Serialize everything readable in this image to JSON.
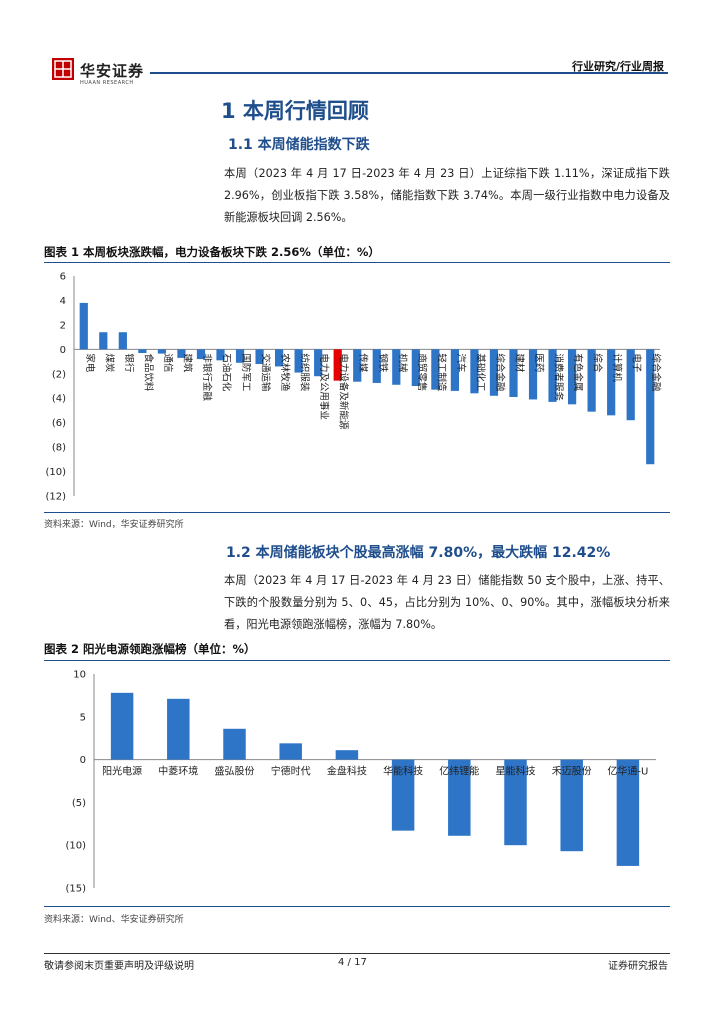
{
  "header": {
    "logo_text": "华安证券",
    "logo_subtext": "HUAAN RESEARCH",
    "report_type": "行业研究/行业周报",
    "colors": {
      "accent": "#1f4e8c",
      "logo": "#c00000"
    }
  },
  "section": {
    "title": "1 本周行情回顾",
    "sub1": {
      "title": "1.1 本周储能指数下跌",
      "text": "本周（2023 年 4 月 17 日-2023 年 4 月 23 日）上证综指下跌 1.11%，深证成指下跌 2.96%，创业板指下跌 3.58%，储能指数下跌 3.74%。本周一级行业指数中电力设备及新能源板块回调 2.56%。"
    },
    "sub2": {
      "title": "1.2 本周储能板块个股最高涨幅 7.80%，最大跌幅 12.42%",
      "text": "本周（2023 年 4 月 17 日-2023 年 4 月 23 日）储能指数 50 支个股中，上涨、持平、下跌的个股数量分别为 5、0、45，占比分别为 10%、0、90%。其中，涨幅板块分析来看，阳光电源领跑涨幅榜，涨幅为 7.80%。"
    }
  },
  "figure1": {
    "title": "图表 1 本周板块涨跌幅，电力设备板块下跌 2.56%（单位：%）",
    "source": "资料来源：Wind，华安证券研究所"
  },
  "figure2": {
    "title": "图表 2 阳光电源领跑涨幅榜（单位：%）",
    "source": "资料来源：Wind、华安证券研究所"
  },
  "chart_data": [
    {
      "type": "bar",
      "categories": [
        "家电",
        "煤炭",
        "银行",
        "食品饮料",
        "通信",
        "建筑",
        "非银行金融",
        "石油石化",
        "国防军工",
        "交通运输",
        "农林牧渔",
        "纺织服装",
        "电力及公用事业",
        "电力设备及新能源",
        "传媒",
        "钢铁",
        "机械",
        "商贸零售",
        "轻工制造",
        "汽车",
        "基础化工",
        "综合金融",
        "建材",
        "医药",
        "消费者服务",
        "有色金属",
        "综合",
        "计算机",
        "电子",
        "综合金融2"
      ],
      "category_labels": [
        "家电",
        "煤炭",
        "银行",
        "食品饮料",
        "通信",
        "建筑",
        "非银行金融",
        "石油石化",
        "国防军工",
        "交通运输",
        "农林牧渔",
        "纺织服装",
        "电力及公用事业",
        "电力设备及新能源",
        "传媒",
        "钢铁",
        "机械",
        "商贸零售",
        "轻工制造",
        "汽车",
        "基础化工",
        "综合金融",
        "建材",
        "医药",
        "消费者服务",
        "有色金属",
        "综合",
        "计算机",
        "电子",
        "综合金融"
      ],
      "values": [
        3.8,
        1.4,
        1.4,
        -0.3,
        -0.35,
        -0.7,
        -0.8,
        -0.9,
        -1.1,
        -1.2,
        -1.4,
        -1.9,
        -2.2,
        -2.56,
        -2.65,
        -2.75,
        -2.9,
        -3.0,
        -3.3,
        -3.4,
        -3.6,
        -3.8,
        -3.9,
        -4.1,
        -4.3,
        -4.5,
        -5.1,
        -5.4,
        -5.8,
        -9.4
      ],
      "highlight_index": 13,
      "ylim": [
        -12,
        6
      ],
      "yticks": [
        "6",
        "4",
        "2",
        "0",
        "(2)",
        "(4)",
        "(6)",
        "(8)",
        "(10)",
        "(12)"
      ],
      "colors": {
        "bar": "#2e75c8",
        "highlight": "#e60000"
      }
    },
    {
      "type": "bar",
      "categories": [
        "阳光电源",
        "中菱环境",
        "盛弘股份",
        "宁德时代",
        "金盘科技",
        "华能科技",
        "亿纬锂能",
        "星能科技",
        "禾迈股份",
        "亿华通-U"
      ],
      "values": [
        7.8,
        7.1,
        3.6,
        1.9,
        1.1,
        -8.3,
        -8.9,
        -10.0,
        -10.7,
        -12.42
      ],
      "ylim": [
        -15,
        10
      ],
      "yticks": [
        "10",
        "5",
        "0",
        "(5)",
        "(10)",
        "(15)"
      ],
      "colors": {
        "bar": "#2e75c8"
      }
    }
  ],
  "footer": {
    "disclaimer": "敬请参阅末页重要声明及评级说明",
    "page": "4 / 17",
    "label": "证券研究报告"
  }
}
